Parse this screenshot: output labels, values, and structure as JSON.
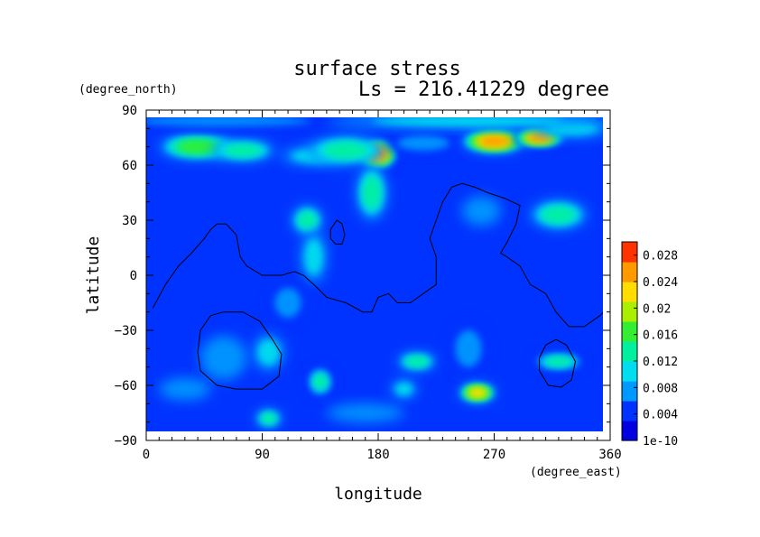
{
  "chart_data": {
    "type": "heatmap",
    "title": "surface stress",
    "subtitle": "Ls = 216.41229 degree",
    "xlabel": "longitude",
    "ylabel": "latitude",
    "x_units": "(degree_east)",
    "y_units": "(degree_north)",
    "xlim": [
      0,
      360
    ],
    "ylim": [
      -90,
      90
    ],
    "x_ticks": [
      "0",
      "90",
      "180",
      "270",
      "360"
    ],
    "y_ticks": [
      "90",
      "60",
      "30",
      "0",
      "−30",
      "−60",
      "−90"
    ],
    "colorbar": {
      "labels": [
        "0.028",
        "0.024",
        "0.02",
        "0.016",
        "0.012",
        "0.008",
        "0.004",
        "1e-10"
      ],
      "min": 0,
      "max": 0.03,
      "colors": [
        "#0000e0",
        "#0033ff",
        "#0099ff",
        "#00ddee",
        "#00f0a0",
        "#33ee33",
        "#aaee00",
        "#ffdd00",
        "#ff9900",
        "#ff3300"
      ]
    },
    "background_value": 0.003,
    "hotspots": [
      {
        "lon": 40,
        "lat": 70,
        "value": 0.016,
        "rx": 30,
        "ry": 7
      },
      {
        "lon": 75,
        "lat": 68,
        "value": 0.012,
        "rx": 25,
        "ry": 6
      },
      {
        "lon": 130,
        "lat": 65,
        "value": 0.01,
        "rx": 25,
        "ry": 5
      },
      {
        "lon": 180,
        "lat": 66,
        "value": 0.026,
        "rx": 15,
        "ry": 8
      },
      {
        "lon": 155,
        "lat": 68,
        "value": 0.012,
        "rx": 30,
        "ry": 8
      },
      {
        "lon": 215,
        "lat": 72,
        "value": 0.008,
        "rx": 30,
        "ry": 6
      },
      {
        "lon": 270,
        "lat": 73,
        "value": 0.024,
        "rx": 25,
        "ry": 6
      },
      {
        "lon": 305,
        "lat": 75,
        "value": 0.026,
        "rx": 20,
        "ry": 5
      },
      {
        "lon": 330,
        "lat": 80,
        "value": 0.01,
        "rx": 30,
        "ry": 5
      },
      {
        "lon": 60,
        "lat": 84,
        "value": 0.008,
        "rx": 100,
        "ry": 4
      },
      {
        "lon": 250,
        "lat": 84,
        "value": 0.01,
        "rx": 110,
        "ry": 4
      },
      {
        "lon": 175,
        "lat": 45,
        "value": 0.012,
        "rx": 12,
        "ry": 15
      },
      {
        "lon": 125,
        "lat": 30,
        "value": 0.012,
        "rx": 12,
        "ry": 8
      },
      {
        "lon": 130,
        "lat": 10,
        "value": 0.01,
        "rx": 10,
        "ry": 14
      },
      {
        "lon": 110,
        "lat": -15,
        "value": 0.008,
        "rx": 15,
        "ry": 12
      },
      {
        "lon": 320,
        "lat": 33,
        "value": 0.012,
        "rx": 22,
        "ry": 8
      },
      {
        "lon": 260,
        "lat": 35,
        "value": 0.006,
        "rx": 15,
        "ry": 8
      },
      {
        "lon": 95,
        "lat": -42,
        "value": 0.01,
        "rx": 12,
        "ry": 10
      },
      {
        "lon": 60,
        "lat": -45,
        "value": 0.006,
        "rx": 18,
        "ry": 12
      },
      {
        "lon": 135,
        "lat": -58,
        "value": 0.014,
        "rx": 10,
        "ry": 8
      },
      {
        "lon": 210,
        "lat": -47,
        "value": 0.012,
        "rx": 15,
        "ry": 5
      },
      {
        "lon": 250,
        "lat": -40,
        "value": 0.008,
        "rx": 15,
        "ry": 15
      },
      {
        "lon": 257,
        "lat": -64,
        "value": 0.022,
        "rx": 14,
        "ry": 5
      },
      {
        "lon": 320,
        "lat": -47,
        "value": 0.014,
        "rx": 20,
        "ry": 5
      },
      {
        "lon": 200,
        "lat": -62,
        "value": 0.01,
        "rx": 10,
        "ry": 5
      },
      {
        "lon": 95,
        "lat": -78,
        "value": 0.012,
        "rx": 10,
        "ry": 5
      },
      {
        "lon": 30,
        "lat": -62,
        "value": 0.006,
        "rx": 20,
        "ry": 6
      },
      {
        "lon": 170,
        "lat": -75,
        "value": 0.006,
        "rx": 30,
        "ry": 5
      }
    ],
    "contours": [
      [
        [
          5,
          -18
        ],
        [
          15,
          -5
        ],
        [
          25,
          5
        ],
        [
          35,
          12
        ],
        [
          45,
          20
        ],
        [
          50,
          25
        ],
        [
          55,
          28
        ],
        [
          62,
          28
        ],
        [
          70,
          22
        ],
        [
          73,
          10
        ],
        [
          78,
          5
        ],
        [
          90,
          0
        ],
        [
          105,
          0
        ],
        [
          115,
          2
        ],
        [
          122,
          0
        ],
        [
          130,
          -5
        ],
        [
          140,
          -12
        ],
        [
          155,
          -15
        ],
        [
          168,
          -20
        ],
        [
          175,
          -20
        ],
        [
          180,
          -12
        ],
        [
          188,
          -10
        ],
        [
          195,
          -15
        ],
        [
          205,
          -15
        ],
        [
          215,
          -10
        ],
        [
          225,
          -5
        ],
        [
          225,
          10
        ],
        [
          220,
          20
        ],
        [
          225,
          30
        ],
        [
          230,
          40
        ],
        [
          237,
          48
        ],
        [
          245,
          50
        ],
        [
          255,
          48
        ],
        [
          265,
          45
        ],
        [
          278,
          42
        ],
        [
          290,
          38
        ],
        [
          287,
          28
        ],
        [
          280,
          18
        ],
        [
          275,
          12
        ],
        [
          280,
          10
        ],
        [
          290,
          5
        ],
        [
          298,
          -5
        ],
        [
          310,
          -10
        ],
        [
          318,
          -20
        ],
        [
          328,
          -28
        ],
        [
          340,
          -28
        ],
        [
          352,
          -22
        ],
        [
          355,
          -20
        ]
      ],
      [
        [
          143,
          25
        ],
        [
          148,
          30
        ],
        [
          152,
          28
        ],
        [
          154,
          22
        ],
        [
          152,
          17
        ],
        [
          147,
          17
        ],
        [
          143,
          20
        ],
        [
          143,
          25
        ]
      ],
      [
        [
          40,
          -42
        ],
        [
          42,
          -30
        ],
        [
          50,
          -22
        ],
        [
          60,
          -20
        ],
        [
          75,
          -20
        ],
        [
          88,
          -25
        ],
        [
          98,
          -35
        ],
        [
          105,
          -43
        ],
        [
          103,
          -55
        ],
        [
          90,
          -62
        ],
        [
          70,
          -62
        ],
        [
          55,
          -60
        ],
        [
          42,
          -52
        ],
        [
          40,
          -42
        ]
      ],
      [
        [
          305,
          -45
        ],
        [
          310,
          -38
        ],
        [
          318,
          -35
        ],
        [
          326,
          -38
        ],
        [
          333,
          -47
        ],
        [
          330,
          -57
        ],
        [
          322,
          -61
        ],
        [
          312,
          -60
        ],
        [
          305,
          -52
        ],
        [
          305,
          -45
        ]
      ]
    ]
  }
}
